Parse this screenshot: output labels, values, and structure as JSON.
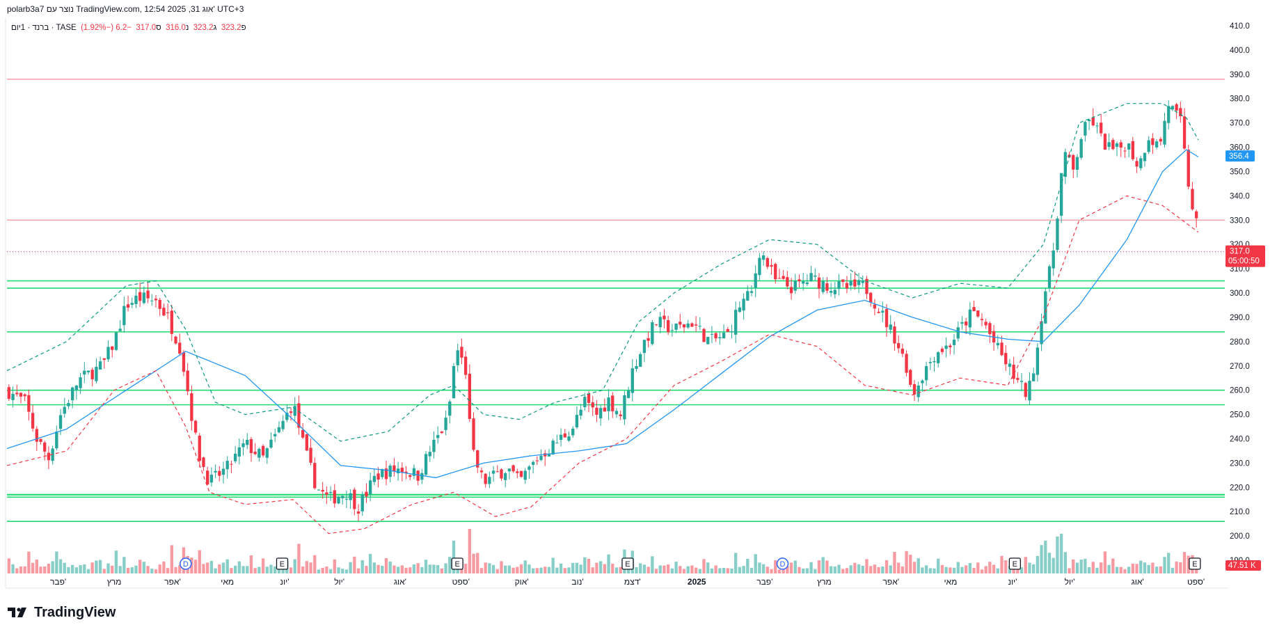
{
  "header": {
    "credit": "polarb3a7 נוצר עם TradingView.com, 12:54 2025 ,31 אוג' UTC+3"
  },
  "symbol_line": {
    "name": "ברנד · 1יום · TASE",
    "o_label": "פ",
    "o_val": "323.2",
    "h_label": "ג",
    "h_val": "323.2",
    "l_label": "נ",
    "l_val": "316.0",
    "c_label": "ס",
    "c_val": "317.0",
    "change": "−6.2 (−1.92%)"
  },
  "price_tag": {
    "price": "317.0",
    "countdown": "05:00:50"
  },
  "ma_tag": "356.4",
  "volume_tag": "47.51 K",
  "brand": "TradingView",
  "markers": [
    "D",
    "E"
  ],
  "colors": {
    "up": "#26a69a",
    "down": "#f23645",
    "ma": "#2196f3",
    "band_upper": "#089981",
    "band_lower": "#f23645",
    "support": "#1fdc72",
    "resistance": "#f7a8ad"
  },
  "chart_data": {
    "type": "candlestick",
    "series_note": "",
    "y_axis": {
      "ticks": [
        190,
        200,
        210,
        220,
        230,
        240,
        250,
        260,
        270,
        280,
        290,
        300,
        310,
        320,
        330,
        340,
        350,
        360,
        370,
        380,
        390,
        400,
        410
      ],
      "range": [
        184,
        412
      ]
    },
    "x_axis": {
      "ticks": [
        {
          "label": "פבר'",
          "t": 0.043
        },
        {
          "label": "מרץ",
          "t": 0.09
        },
        {
          "label": "אפר'",
          "t": 0.139
        },
        {
          "label": "מאי",
          "t": 0.185
        },
        {
          "label": "יונ'",
          "t": 0.233
        },
        {
          "label": "יול'",
          "t": 0.279
        },
        {
          "label": "אוג'",
          "t": 0.33
        },
        {
          "label": "ספט'",
          "t": 0.381
        },
        {
          "label": "אוק'",
          "t": 0.432
        },
        {
          "label": "נוב'",
          "t": 0.479
        },
        {
          "label": "דצמ'",
          "t": 0.525
        },
        {
          "label": "2025",
          "t": 0.579
        },
        {
          "label": "פבר'",
          "t": 0.636
        },
        {
          "label": "מרץ",
          "t": 0.686
        },
        {
          "label": "אפר'",
          "t": 0.742
        },
        {
          "label": "מאי",
          "t": 0.792
        },
        {
          "label": "יונ'",
          "t": 0.844
        },
        {
          "label": "יול'",
          "t": 0.892
        },
        {
          "label": "אוג'",
          "t": 0.949
        },
        {
          "label": "ספט'",
          "t": 0.998
        }
      ]
    },
    "horizontal_levels": [
      {
        "price": 388,
        "kind": "resistance"
      },
      {
        "price": 330,
        "kind": "resistance"
      },
      {
        "price": 305,
        "kind": "support"
      },
      {
        "price": 302,
        "kind": "support"
      },
      {
        "price": 284,
        "kind": "support"
      },
      {
        "price": 260,
        "kind": "support"
      },
      {
        "price": 254,
        "kind": "support"
      },
      {
        "price": 217,
        "kind": "support"
      },
      {
        "price": 216,
        "kind": "support"
      },
      {
        "price": 206,
        "kind": "support"
      }
    ],
    "price_path": [
      {
        "t": 0.0,
        "p": 260
      },
      {
        "t": 0.015,
        "p": 255
      },
      {
        "t": 0.025,
        "p": 240
      },
      {
        "t": 0.035,
        "p": 232
      },
      {
        "t": 0.045,
        "p": 250
      },
      {
        "t": 0.06,
        "p": 264
      },
      {
        "t": 0.08,
        "p": 270
      },
      {
        "t": 0.09,
        "p": 280
      },
      {
        "t": 0.1,
        "p": 295
      },
      {
        "t": 0.11,
        "p": 298
      },
      {
        "t": 0.125,
        "p": 297
      },
      {
        "t": 0.135,
        "p": 290
      },
      {
        "t": 0.145,
        "p": 278
      },
      {
        "t": 0.15,
        "p": 265
      },
      {
        "t": 0.16,
        "p": 235
      },
      {
        "t": 0.17,
        "p": 222
      },
      {
        "t": 0.185,
        "p": 228
      },
      {
        "t": 0.2,
        "p": 238
      },
      {
        "t": 0.215,
        "p": 232
      },
      {
        "t": 0.23,
        "p": 245
      },
      {
        "t": 0.24,
        "p": 255
      },
      {
        "t": 0.25,
        "p": 235
      },
      {
        "t": 0.26,
        "p": 220
      },
      {
        "t": 0.27,
        "p": 215
      },
      {
        "t": 0.285,
        "p": 218
      },
      {
        "t": 0.295,
        "p": 212
      },
      {
        "t": 0.31,
        "p": 225
      },
      {
        "t": 0.33,
        "p": 228
      },
      {
        "t": 0.345,
        "p": 225
      },
      {
        "t": 0.355,
        "p": 235
      },
      {
        "t": 0.37,
        "p": 248
      },
      {
        "t": 0.377,
        "p": 278
      },
      {
        "t": 0.385,
        "p": 268
      },
      {
        "t": 0.39,
        "p": 235
      },
      {
        "t": 0.4,
        "p": 222
      },
      {
        "t": 0.41,
        "p": 225
      },
      {
        "t": 0.42,
        "p": 228
      },
      {
        "t": 0.43,
        "p": 222
      },
      {
        "t": 0.445,
        "p": 232
      },
      {
        "t": 0.46,
        "p": 238
      },
      {
        "t": 0.475,
        "p": 245
      },
      {
        "t": 0.485,
        "p": 255
      },
      {
        "t": 0.495,
        "p": 250
      },
      {
        "t": 0.505,
        "p": 256
      },
      {
        "t": 0.515,
        "p": 250
      },
      {
        "t": 0.525,
        "p": 268
      },
      {
        "t": 0.535,
        "p": 280
      },
      {
        "t": 0.545,
        "p": 288
      },
      {
        "t": 0.56,
        "p": 285
      },
      {
        "t": 0.575,
        "p": 288
      },
      {
        "t": 0.59,
        "p": 280
      },
      {
        "t": 0.605,
        "p": 283
      },
      {
        "t": 0.615,
        "p": 295
      },
      {
        "t": 0.625,
        "p": 300
      },
      {
        "t": 0.632,
        "p": 318
      },
      {
        "t": 0.645,
        "p": 305
      },
      {
        "t": 0.66,
        "p": 302
      },
      {
        "t": 0.675,
        "p": 306
      },
      {
        "t": 0.69,
        "p": 303
      },
      {
        "t": 0.705,
        "p": 302
      },
      {
        "t": 0.72,
        "p": 303
      },
      {
        "t": 0.73,
        "p": 295
      },
      {
        "t": 0.745,
        "p": 282
      },
      {
        "t": 0.755,
        "p": 270
      },
      {
        "t": 0.76,
        "p": 258
      },
      {
        "t": 0.77,
        "p": 268
      },
      {
        "t": 0.78,
        "p": 276
      },
      {
        "t": 0.79,
        "p": 278
      },
      {
        "t": 0.8,
        "p": 285
      },
      {
        "t": 0.81,
        "p": 292
      },
      {
        "t": 0.82,
        "p": 288
      },
      {
        "t": 0.83,
        "p": 278
      },
      {
        "t": 0.84,
        "p": 270
      },
      {
        "t": 0.85,
        "p": 262
      },
      {
        "t": 0.857,
        "p": 258
      },
      {
        "t": 0.865,
        "p": 278
      },
      {
        "t": 0.87,
        "p": 298
      },
      {
        "t": 0.877,
        "p": 312
      },
      {
        "t": 0.882,
        "p": 335
      },
      {
        "t": 0.887,
        "p": 358
      },
      {
        "t": 0.895,
        "p": 350
      },
      {
        "t": 0.902,
        "p": 365
      },
      {
        "t": 0.91,
        "p": 372
      },
      {
        "t": 0.92,
        "p": 362
      },
      {
        "t": 0.93,
        "p": 358
      },
      {
        "t": 0.94,
        "p": 362
      },
      {
        "t": 0.95,
        "p": 352
      },
      {
        "t": 0.958,
        "p": 365
      },
      {
        "t": 0.967,
        "p": 360
      },
      {
        "t": 0.975,
        "p": 378
      },
      {
        "t": 0.985,
        "p": 370
      },
      {
        "t": 0.993,
        "p": 340
      },
      {
        "t": 1.0,
        "p": 325
      },
      {
        "t": 1.006,
        "p": 317
      }
    ],
    "moving_average": [
      {
        "t": 0.0,
        "p": 236
      },
      {
        "t": 0.05,
        "p": 244
      },
      {
        "t": 0.1,
        "p": 260
      },
      {
        "t": 0.15,
        "p": 276
      },
      {
        "t": 0.2,
        "p": 266
      },
      {
        "t": 0.24,
        "p": 248
      },
      {
        "t": 0.28,
        "p": 229
      },
      {
        "t": 0.32,
        "p": 227
      },
      {
        "t": 0.36,
        "p": 224
      },
      {
        "t": 0.4,
        "p": 230
      },
      {
        "t": 0.44,
        "p": 233
      },
      {
        "t": 0.48,
        "p": 235
      },
      {
        "t": 0.52,
        "p": 238
      },
      {
        "t": 0.56,
        "p": 252
      },
      {
        "t": 0.6,
        "p": 267
      },
      {
        "t": 0.64,
        "p": 282
      },
      {
        "t": 0.68,
        "p": 293
      },
      {
        "t": 0.72,
        "p": 297
      },
      {
        "t": 0.76,
        "p": 290
      },
      {
        "t": 0.8,
        "p": 284
      },
      {
        "t": 0.84,
        "p": 281
      },
      {
        "t": 0.87,
        "p": 280
      },
      {
        "t": 0.9,
        "p": 295
      },
      {
        "t": 0.94,
        "p": 322
      },
      {
        "t": 0.97,
        "p": 350
      },
      {
        "t": 0.99,
        "p": 359
      },
      {
        "t": 1.0,
        "p": 356
      }
    ],
    "band_upper": [
      {
        "t": 0.0,
        "p": 268
      },
      {
        "t": 0.05,
        "p": 280
      },
      {
        "t": 0.1,
        "p": 303
      },
      {
        "t": 0.125,
        "p": 305
      },
      {
        "t": 0.15,
        "p": 285
      },
      {
        "t": 0.175,
        "p": 255
      },
      {
        "t": 0.2,
        "p": 250
      },
      {
        "t": 0.24,
        "p": 253
      },
      {
        "t": 0.28,
        "p": 239
      },
      {
        "t": 0.32,
        "p": 243
      },
      {
        "t": 0.355,
        "p": 258
      },
      {
        "t": 0.375,
        "p": 262
      },
      {
        "t": 0.4,
        "p": 250
      },
      {
        "t": 0.43,
        "p": 248
      },
      {
        "t": 0.46,
        "p": 255
      },
      {
        "t": 0.5,
        "p": 260
      },
      {
        "t": 0.53,
        "p": 288
      },
      {
        "t": 0.56,
        "p": 300
      },
      {
        "t": 0.6,
        "p": 312
      },
      {
        "t": 0.64,
        "p": 322
      },
      {
        "t": 0.68,
        "p": 320
      },
      {
        "t": 0.72,
        "p": 305
      },
      {
        "t": 0.76,
        "p": 298
      },
      {
        "t": 0.8,
        "p": 304
      },
      {
        "t": 0.84,
        "p": 302
      },
      {
        "t": 0.87,
        "p": 320
      },
      {
        "t": 0.9,
        "p": 370
      },
      {
        "t": 0.94,
        "p": 378
      },
      {
        "t": 0.97,
        "p": 378
      },
      {
        "t": 0.99,
        "p": 372
      },
      {
        "t": 1.0,
        "p": 363
      }
    ],
    "band_lower": [
      {
        "t": 0.0,
        "p": 229
      },
      {
        "t": 0.05,
        "p": 235
      },
      {
        "t": 0.09,
        "p": 260
      },
      {
        "t": 0.125,
        "p": 268
      },
      {
        "t": 0.15,
        "p": 245
      },
      {
        "t": 0.17,
        "p": 218
      },
      {
        "t": 0.2,
        "p": 213
      },
      {
        "t": 0.24,
        "p": 215
      },
      {
        "t": 0.27,
        "p": 201
      },
      {
        "t": 0.3,
        "p": 203
      },
      {
        "t": 0.34,
        "p": 213
      },
      {
        "t": 0.375,
        "p": 218
      },
      {
        "t": 0.41,
        "p": 208
      },
      {
        "t": 0.44,
        "p": 212
      },
      {
        "t": 0.48,
        "p": 230
      },
      {
        "t": 0.52,
        "p": 240
      },
      {
        "t": 0.56,
        "p": 262
      },
      {
        "t": 0.6,
        "p": 272
      },
      {
        "t": 0.64,
        "p": 283
      },
      {
        "t": 0.68,
        "p": 278
      },
      {
        "t": 0.72,
        "p": 262
      },
      {
        "t": 0.76,
        "p": 258
      },
      {
        "t": 0.8,
        "p": 265
      },
      {
        "t": 0.84,
        "p": 262
      },
      {
        "t": 0.87,
        "p": 290
      },
      {
        "t": 0.9,
        "p": 330
      },
      {
        "t": 0.94,
        "p": 340
      },
      {
        "t": 0.97,
        "p": 336
      },
      {
        "t": 1.0,
        "p": 325
      }
    ],
    "events": [
      {
        "type": "D",
        "t": 0.15
      },
      {
        "type": "E",
        "t": 0.231
      },
      {
        "type": "E",
        "t": 0.378
      },
      {
        "type": "E",
        "t": 0.521
      },
      {
        "type": "D",
        "t": 0.651
      },
      {
        "type": "E",
        "t": 0.846
      },
      {
        "type": "E",
        "t": 0.997
      }
    ]
  }
}
